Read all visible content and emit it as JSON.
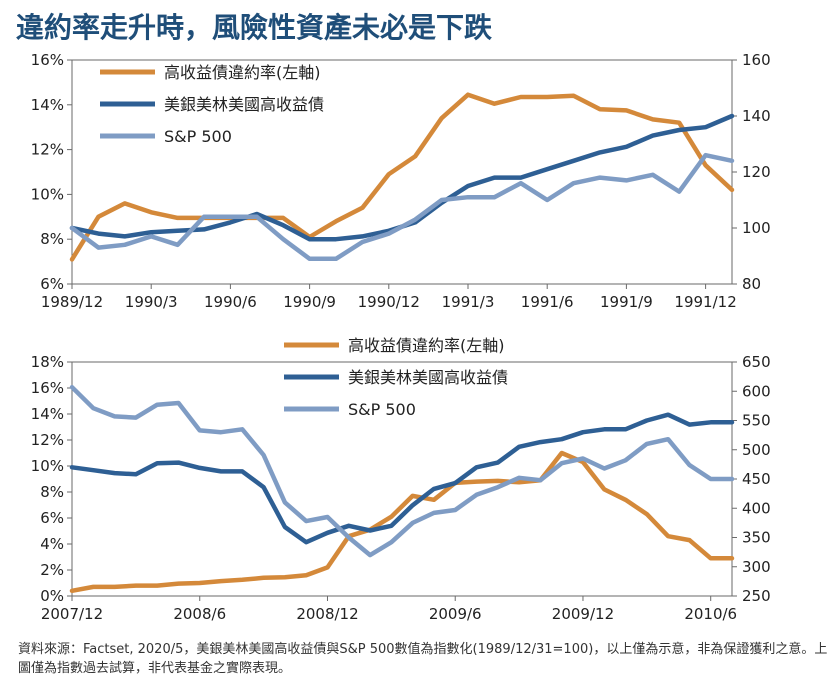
{
  "title": "違約率走升時，風險性資產未必是下跌",
  "source_note": "資料來源：Factset, 2020/5，美銀美林美國高收益債與S&P 500數值為指數化(1989/12/31=100)，以上僅為示意，非為保證獲利之意。上圖僅為指數過去試算，非代表基金之實際表現。",
  "colors": {
    "default_rate": "#d4893a",
    "hy": "#2e5f94",
    "sp": "#7f9cc4"
  },
  "chart_data": [
    {
      "type": "line",
      "x": [
        "1989/12",
        "1990/1",
        "1990/2",
        "1990/3",
        "1990/4",
        "1990/5",
        "1990/6",
        "1990/7",
        "1990/8",
        "1990/9",
        "1990/10",
        "1990/11",
        "1990/12",
        "1991/1",
        "1991/2",
        "1991/3",
        "1991/4",
        "1991/5",
        "1991/6",
        "1991/7",
        "1991/8",
        "1991/9",
        "1991/10",
        "1991/11",
        "1991/12",
        "1992/1"
      ],
      "xticks": [
        "1989/12",
        "1990/3",
        "1990/6",
        "1990/9",
        "1990/12",
        "1991/3",
        "1991/6",
        "1991/9",
        "1991/12"
      ],
      "yticks_left": [
        "6%",
        "8%",
        "10%",
        "12%",
        "14%",
        "16%"
      ],
      "yticks_right": [
        "80",
        "100",
        "120",
        "140",
        "160"
      ],
      "ylim_left": [
        6,
        16
      ],
      "ylim_right": [
        80,
        160
      ],
      "legend": [
        "高收益債違約率(左軸)",
        "美銀美林美國高收益債",
        "S&P 500"
      ],
      "series": [
        {
          "name": "高收益債違約率(左軸)",
          "axis": "left",
          "values": [
            7.1,
            9.0,
            9.6,
            9.2,
            8.95,
            8.95,
            8.95,
            8.95,
            8.95,
            8.1,
            8.8,
            9.4,
            10.9,
            11.7,
            13.4,
            14.45,
            14.05,
            14.35,
            14.35,
            14.4,
            13.8,
            13.75,
            13.35,
            13.2,
            11.3,
            10.2
          ]
        },
        {
          "name": "美銀美林美國高收益債",
          "axis": "right",
          "values": [
            100,
            98,
            97,
            98.5,
            99,
            99.5,
            102,
            105,
            101,
            96,
            96,
            97,
            99,
            102,
            109,
            115,
            118,
            118,
            121,
            124,
            127,
            129,
            133,
            135,
            136,
            140
          ]
        },
        {
          "name": "S&P 500",
          "axis": "right",
          "values": [
            100,
            93,
            94,
            97,
            94,
            104,
            104,
            104,
            96,
            89,
            89,
            95,
            98,
            103,
            110,
            111,
            111,
            116,
            110,
            116,
            118,
            117,
            119,
            113,
            126,
            124
          ]
        }
      ]
    },
    {
      "type": "line",
      "x": [
        "2007/12",
        "2008/1",
        "2008/2",
        "2008/3",
        "2008/4",
        "2008/5",
        "2008/6",
        "2008/7",
        "2008/8",
        "2008/9",
        "2008/10",
        "2008/11",
        "2008/12",
        "2009/1",
        "2009/2",
        "2009/3",
        "2009/4",
        "2009/5",
        "2009/6",
        "2009/7",
        "2009/8",
        "2009/9",
        "2009/10",
        "2009/11",
        "2009/12",
        "2010/1",
        "2010/2",
        "2010/3",
        "2010/4",
        "2010/5",
        "2010/6",
        "2010/7"
      ],
      "xticks": [
        "2007/12",
        "2008/6",
        "2008/12",
        "2009/6",
        "2009/12",
        "2010/6"
      ],
      "yticks_left": [
        "0%",
        "2%",
        "4%",
        "6%",
        "8%",
        "10%",
        "12%",
        "14%",
        "16%",
        "18%"
      ],
      "yticks_right": [
        "250",
        "300",
        "350",
        "400",
        "450",
        "500",
        "550",
        "600",
        "650"
      ],
      "ylim_left": [
        0,
        18
      ],
      "ylim_right": [
        250,
        650
      ],
      "legend": [
        "高收益債違約率(左軸)",
        "美銀美林美國高收益債",
        "S&P 500"
      ],
      "series": [
        {
          "name": "高收益債違約率(左軸)",
          "axis": "left",
          "values": [
            0.4,
            0.7,
            0.7,
            0.8,
            0.8,
            0.95,
            1.0,
            1.15,
            1.25,
            1.4,
            1.45,
            1.6,
            2.2,
            4.6,
            5.1,
            6.1,
            7.7,
            7.4,
            8.7,
            8.8,
            8.85,
            8.75,
            8.9,
            11.0,
            10.3,
            8.2,
            7.4,
            6.3,
            4.6,
            4.3,
            2.9,
            2.9
          ]
        },
        {
          "name": "美銀美林美國高收益債",
          "axis": "right",
          "values": [
            470,
            465,
            460,
            458,
            477,
            478,
            469,
            463,
            463,
            436,
            368,
            342,
            358,
            370,
            362,
            370,
            405,
            433,
            443,
            470,
            478,
            505,
            513,
            518,
            530,
            535,
            535,
            550,
            560,
            543,
            547,
            547
          ]
        },
        {
          "name": "S&P 500",
          "axis": "right",
          "values": [
            607,
            571,
            557,
            555,
            577,
            580,
            533,
            530,
            535,
            491,
            410,
            378,
            385,
            350,
            320,
            342,
            375,
            392,
            397,
            423,
            436,
            452,
            448,
            477,
            485,
            468,
            482,
            510,
            518,
            474,
            450,
            450
          ]
        }
      ]
    }
  ]
}
